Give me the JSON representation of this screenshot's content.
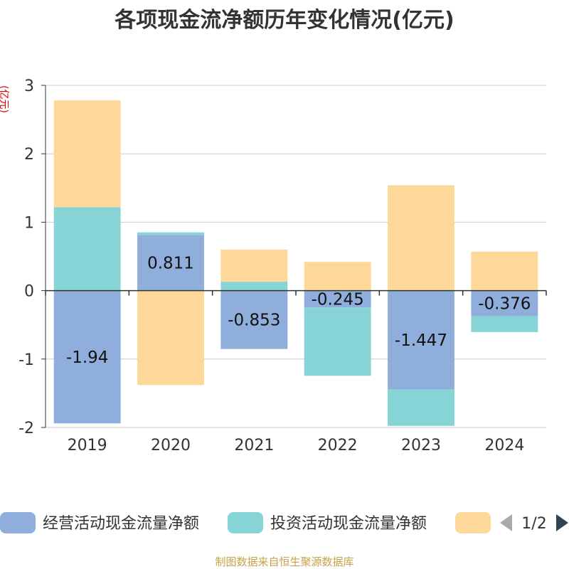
{
  "chart_data": {
    "type": "bar",
    "stacked": true,
    "title": "各项现金流净额历年变化情况(亿元)",
    "ylabel": "(亿元)",
    "xlabel": "",
    "ylim": [
      -2,
      3
    ],
    "yticks": [
      3,
      2,
      1,
      0,
      -1,
      -2
    ],
    "grid": true,
    "categories": [
      "2019",
      "2020",
      "2021",
      "2022",
      "2023",
      "2024"
    ],
    "series": [
      {
        "name": "经营活动现金流量净额",
        "color": "#8faedb",
        "values": [
          -1.94,
          0.811,
          -0.853,
          -0.245,
          -1.447,
          -0.376
        ],
        "show_labels": true
      },
      {
        "name": "投资活动现金流量净额",
        "color": "#87d4d6",
        "values": [
          1.22,
          0.04,
          0.13,
          -1.0,
          -0.53,
          -0.23
        ],
        "show_labels": false
      },
      {
        "name": "",
        "color": "#fed899",
        "values": [
          1.56,
          -1.38,
          0.47,
          0.42,
          1.54,
          0.57
        ],
        "show_labels": false
      }
    ],
    "legend": {
      "position": "bottom",
      "page": "1/2"
    },
    "source": "制图数据来自恒生聚源数据库"
  },
  "colors": {
    "axis": "#333333",
    "grid": "#cccccc",
    "arrow_disabled": "#aaaaaa",
    "arrow_active": "#2f4554"
  }
}
